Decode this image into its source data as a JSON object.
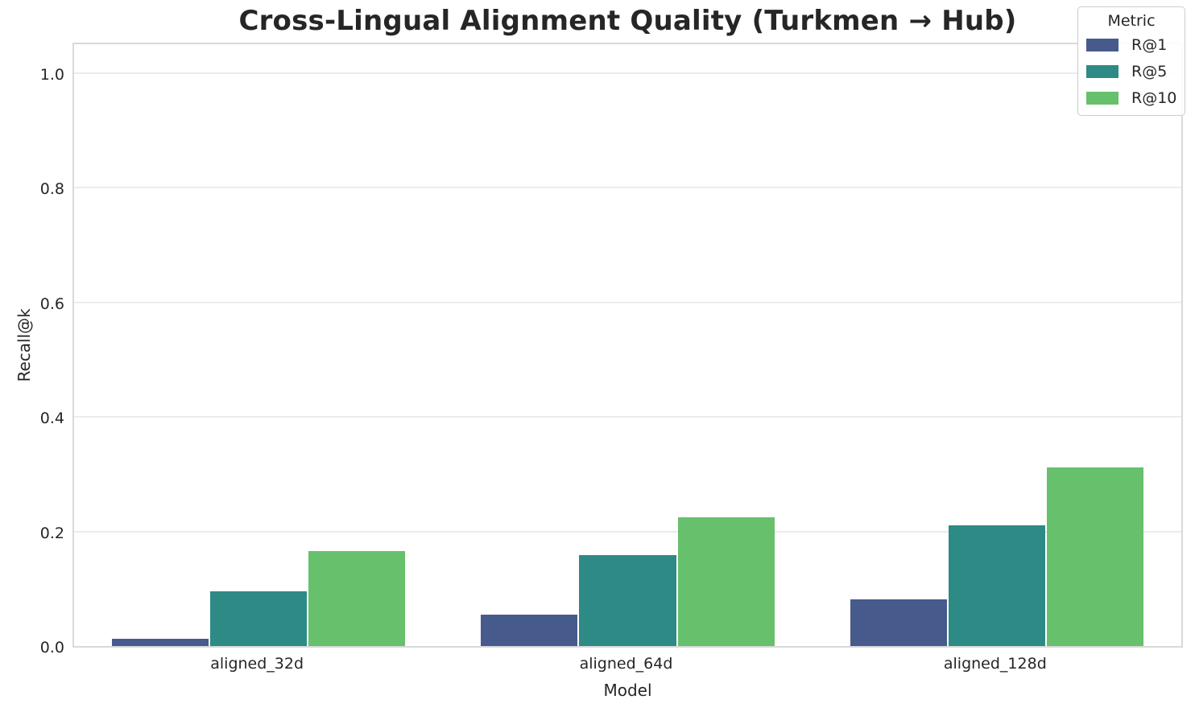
{
  "chart_data": {
    "type": "bar",
    "title": "Cross-Lingual Alignment Quality (Turkmen → Hub)",
    "xlabel": "Model",
    "ylabel": "Recall@k",
    "categories": [
      "aligned_32d",
      "aligned_64d",
      "aligned_128d"
    ],
    "series": [
      {
        "name": "R@1",
        "color": "#475a8c",
        "values": [
          0.012,
          0.055,
          0.082
        ]
      },
      {
        "name": "R@5",
        "color": "#2e8a84",
        "values": [
          0.095,
          0.158,
          0.211
        ]
      },
      {
        "name": "R@10",
        "color": "#67c06c",
        "values": [
          0.166,
          0.224,
          0.312
        ]
      }
    ],
    "ylim": [
      0,
      1.05
    ],
    "yticks": [
      "0.0",
      "0.2",
      "0.4",
      "0.6",
      "0.8",
      "1.0"
    ],
    "ytick_values": [
      0,
      0.2,
      0.4,
      0.6,
      0.8,
      1.0
    ],
    "legend_title": "Metric",
    "legend_position": "upper right",
    "grid": true,
    "bar_group_width_fraction": 0.8
  }
}
